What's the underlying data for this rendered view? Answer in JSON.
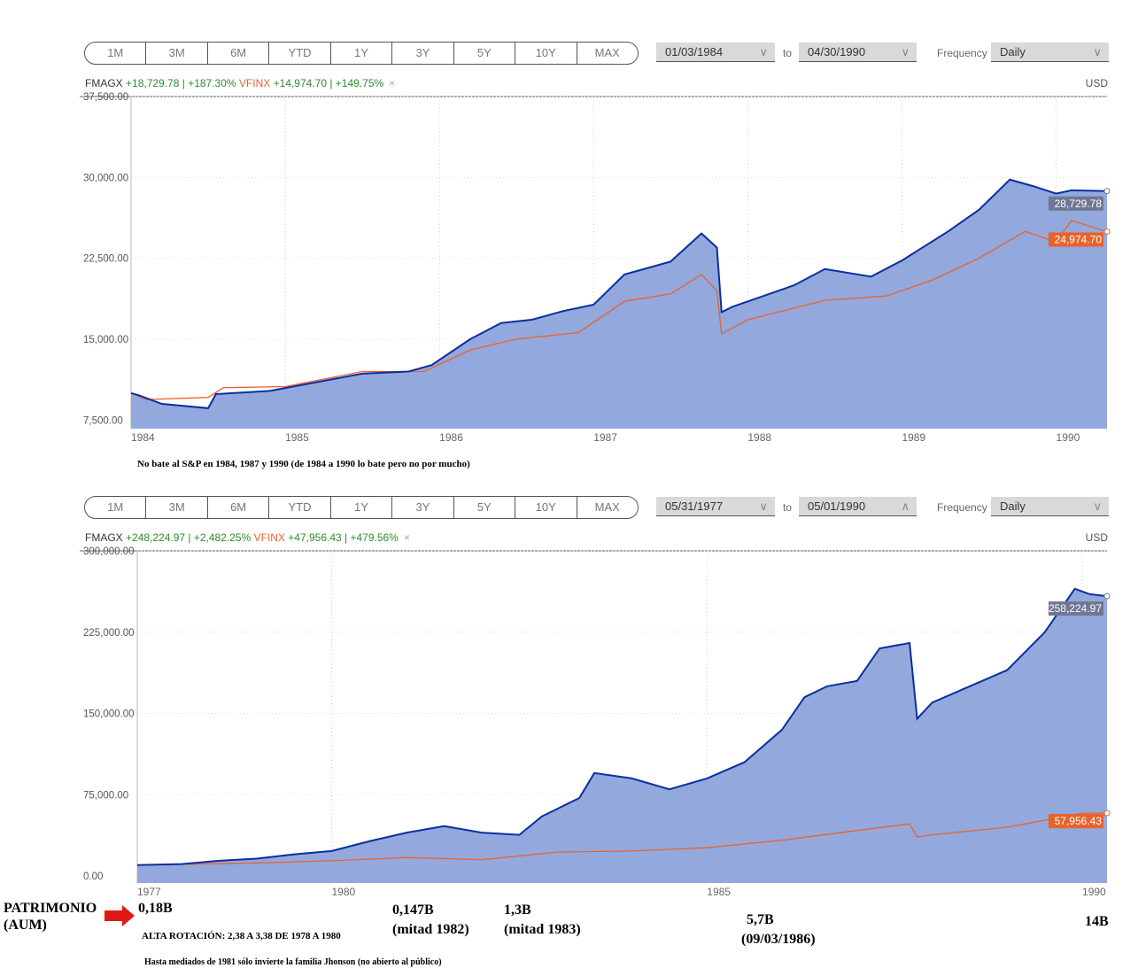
{
  "range_buttons": [
    "1M",
    "3M",
    "6M",
    "YTD",
    "1Y",
    "3Y",
    "5Y",
    "10Y",
    "MAX"
  ],
  "panels": [
    {
      "from": "01/03/1984",
      "to_label": "to",
      "to": "04/30/1990",
      "frequency_label": "Frequency",
      "frequency": "Daily",
      "legend": {
        "s1": "FMAGX",
        "s1_stats": "+18,729.78 | +187.30%",
        "s2": "VFINX",
        "s2_stats": "+14,974.70 | +149.75%",
        "close": "×"
      },
      "currency": "USD"
    },
    {
      "from": "05/31/1977",
      "to_label": "to",
      "to": "05/01/1990",
      "frequency_label": "Frequency",
      "frequency": "Daily",
      "legend": {
        "s1": "FMAGX",
        "s1_stats": "+248,224.97 | +2,482.25%",
        "s2": "VFINX",
        "s2_stats": "+47,956.43 | +479.56%",
        "close": "×"
      },
      "currency": "USD"
    }
  ],
  "colors": {
    "fmagx_line": "#0a2fa0",
    "fmagx_fill": "#93a8dc",
    "vfinx": "#e8622c",
    "gain": "#2e8b2e"
  },
  "chart_data": [
    {
      "type": "area",
      "ylim": [
        6700,
        37500
      ],
      "xlim": [
        1984.0,
        1990.33
      ],
      "grid": true,
      "yticks": [
        "37,500.00",
        "30,000.00",
        "22,500.00",
        "15,000.00",
        "7,500.00"
      ],
      "ytick_values": [
        37500,
        30000,
        22500,
        15000,
        7500
      ],
      "xticks": [
        "1984",
        "1985",
        "1986",
        "1987",
        "1988",
        "1989",
        "1990"
      ],
      "xtick_values": [
        1984,
        1985,
        1986,
        1987,
        1988,
        1989,
        1990
      ],
      "series": [
        {
          "name": "FMAGX",
          "last_label": "28,729.78",
          "x": [
            1984.0,
            1984.05,
            1984.2,
            1984.5,
            1984.55,
            1984.9,
            1985.2,
            1985.5,
            1985.8,
            1985.95,
            1986.2,
            1986.4,
            1986.6,
            1986.8,
            1987.0,
            1987.2,
            1987.35,
            1987.5,
            1987.7,
            1987.8,
            1987.83,
            1987.9,
            1988.0,
            1988.3,
            1988.5,
            1988.8,
            1989.0,
            1989.3,
            1989.5,
            1989.7,
            1989.85,
            1990.0,
            1990.1,
            1990.33
          ],
          "y": [
            10000,
            9800,
            9000,
            8600,
            9900,
            10200,
            11000,
            11800,
            12000,
            12600,
            15000,
            16500,
            16800,
            17600,
            18200,
            21000,
            21600,
            22200,
            24800,
            23500,
            17500,
            18000,
            18500,
            20000,
            21500,
            20800,
            22300,
            25000,
            27000,
            29800,
            29200,
            28500,
            28800,
            28729.78
          ]
        },
        {
          "name": "VFINX",
          "last_label": "24,974.70",
          "x": [
            1984.0,
            1984.1,
            1984.5,
            1984.6,
            1985.0,
            1985.5,
            1985.9,
            1986.2,
            1986.5,
            1986.9,
            1987.2,
            1987.5,
            1987.7,
            1987.8,
            1987.83,
            1988.0,
            1988.5,
            1988.9,
            1989.2,
            1989.5,
            1989.8,
            1990.0,
            1990.1,
            1990.33
          ],
          "y": [
            10000,
            9400,
            9600,
            10500,
            10600,
            12000,
            12000,
            14000,
            15000,
            15600,
            18500,
            19200,
            21000,
            19500,
            15500,
            16800,
            18600,
            19000,
            20500,
            22500,
            25000,
            24000,
            26000,
            24974.7
          ]
        }
      ]
    },
    {
      "type": "area",
      "ylim": [
        -6500,
        300000
      ],
      "xlim": [
        1977.41,
        1990.33
      ],
      "grid": true,
      "yticks": [
        "300,000.00",
        "225,000.00",
        "150,000.00",
        "75,000.00",
        "0.00"
      ],
      "ytick_values": [
        300000,
        225000,
        150000,
        75000,
        0
      ],
      "xticks": [
        "1977",
        "1980",
        "1985",
        "1990"
      ],
      "xtick_values": [
        1977.41,
        1980,
        1985,
        1990
      ],
      "series": [
        {
          "name": "FMAGX",
          "last_label": "258,224.97",
          "x": [
            1977.41,
            1978,
            1978.5,
            1979,
            1979.5,
            1980,
            1980.5,
            1981,
            1981.5,
            1982,
            1982.5,
            1982.8,
            1983.3,
            1983.5,
            1984,
            1984.5,
            1985,
            1985.5,
            1986,
            1986.3,
            1986.6,
            1987,
            1987.3,
            1987.7,
            1987.8,
            1988,
            1988.5,
            1989,
            1989.5,
            1989.9,
            1990.1,
            1990.33
          ],
          "y": [
            10000,
            11000,
            14000,
            16000,
            20000,
            23000,
            32000,
            40000,
            46000,
            40000,
            38000,
            55000,
            72000,
            95000,
            90000,
            80000,
            90000,
            105000,
            135000,
            165000,
            175000,
            180000,
            210000,
            215000,
            145000,
            160000,
            175000,
            190000,
            225000,
            265000,
            260000,
            258224.97
          ]
        },
        {
          "name": "VFINX",
          "last_label": "57,956.43",
          "x": [
            1977.41,
            1979,
            1980,
            1981,
            1982,
            1983,
            1984,
            1985,
            1986,
            1987,
            1987.7,
            1987.8,
            1988,
            1989,
            1990,
            1990.33
          ],
          "y": [
            10000,
            12000,
            14000,
            17000,
            15000,
            22000,
            23000,
            26000,
            33000,
            42000,
            48000,
            36000,
            38000,
            45000,
            58000,
            57956.43
          ]
        }
      ]
    }
  ],
  "annotations": {
    "chart1_note": "No bate al S&P en 1984, 1987 y 1990 (de 1984 a 1990 lo bate pero no por mucho)",
    "aum_label_1": "PATRIMONIO",
    "aum_label_2": "(AUM)",
    "aum_1977": "0,18B",
    "aum_1982": "0,147B",
    "aum_1982_sub": "(mitad 1982)",
    "aum_1983": "1,3B",
    "aum_1983_sub": "(mitad 1983)",
    "aum_1986": "5,7B",
    "aum_1986_sub": "(09/03/1986)",
    "aum_1990": "14B",
    "rotation": "ALTA ROTACIÓN: 2,38 A 3,38 DE 1978 A 1980",
    "private": "Hasta mediados de 1981 sólo invierte la familia Jhonson (no abierto al público)"
  }
}
